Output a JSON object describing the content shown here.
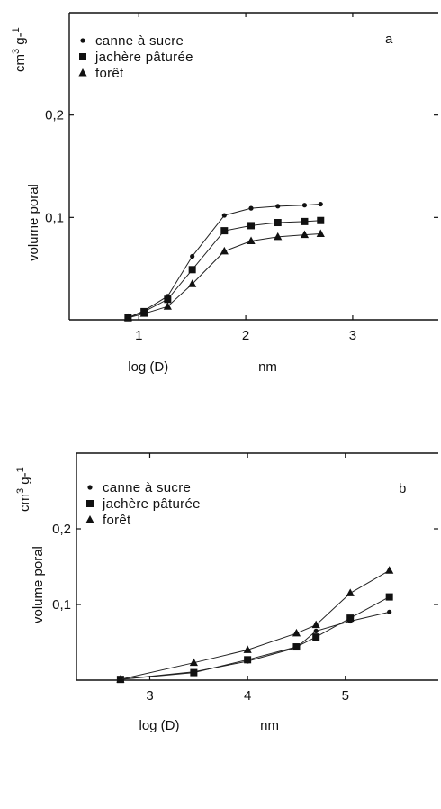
{
  "chart_data": [
    {
      "type": "line",
      "panel_label": "a",
      "xlabel": "log (D)",
      "xunit": "nm",
      "ylabel": "volume poral",
      "yunit": "cm3 g-1",
      "xlim": [
        0.35,
        3.8
      ],
      "ylim": [
        0,
        0.3
      ],
      "xticks": [
        1,
        2,
        3
      ],
      "xtick_labels": [
        "1",
        "2",
        "3"
      ],
      "yticks": [
        0.1,
        0.2
      ],
      "ytick_labels": [
        "0,1",
        "0,2"
      ],
      "legend_position": "top-left",
      "series": [
        {
          "name": "canne à sucre",
          "marker": "circle",
          "x": [
            0.9,
            1.05,
            1.27,
            1.5,
            1.8,
            2.05,
            2.3,
            2.55,
            2.7
          ],
          "y": [
            0.002,
            0.009,
            0.023,
            0.062,
            0.102,
            0.109,
            0.111,
            0.112,
            0.113
          ]
        },
        {
          "name": "jachère pâturée",
          "marker": "square",
          "x": [
            0.9,
            1.05,
            1.27,
            1.5,
            1.8,
            2.05,
            2.3,
            2.55,
            2.7
          ],
          "y": [
            0.002,
            0.008,
            0.02,
            0.049,
            0.087,
            0.092,
            0.095,
            0.096,
            0.097
          ]
        },
        {
          "name": "forêt",
          "marker": "triangle",
          "x": [
            0.9,
            1.05,
            1.27,
            1.5,
            1.8,
            2.05,
            2.3,
            2.55,
            2.7
          ],
          "y": [
            0.002,
            0.006,
            0.013,
            0.035,
            0.067,
            0.077,
            0.081,
            0.083,
            0.084
          ]
        }
      ]
    },
    {
      "type": "line",
      "panel_label": "b",
      "xlabel": "log (D)",
      "xunit": "nm",
      "ylabel": "volume poral",
      "yunit": "cm3 g-1",
      "xlim": [
        2.25,
        5.95
      ],
      "ylim": [
        0,
        0.3
      ],
      "xticks": [
        3,
        4,
        5
      ],
      "xtick_labels": [
        "3",
        "4",
        "5"
      ],
      "yticks": [
        0.1,
        0.2
      ],
      "ytick_labels": [
        "0,1",
        "0,2"
      ],
      "legend_position": "top-left",
      "series": [
        {
          "name": "canne à sucre",
          "marker": "circle",
          "x": [
            2.7,
            3.45,
            4.0,
            4.5,
            4.7,
            5.05,
            5.45
          ],
          "y": [
            0.001,
            0.011,
            0.025,
            0.043,
            0.065,
            0.078,
            0.09
          ]
        },
        {
          "name": "jachère pâturée",
          "marker": "square",
          "x": [
            2.7,
            3.45,
            4.0,
            4.5,
            4.7,
            5.05,
            5.45
          ],
          "y": [
            0.001,
            0.01,
            0.027,
            0.044,
            0.057,
            0.082,
            0.11
          ]
        },
        {
          "name": "forêt",
          "marker": "triangle",
          "x": [
            2.7,
            3.45,
            4.0,
            4.5,
            4.7,
            5.05,
            5.45
          ],
          "y": [
            0.001,
            0.023,
            0.04,
            0.062,
            0.073,
            0.115,
            0.145
          ]
        }
      ]
    }
  ]
}
